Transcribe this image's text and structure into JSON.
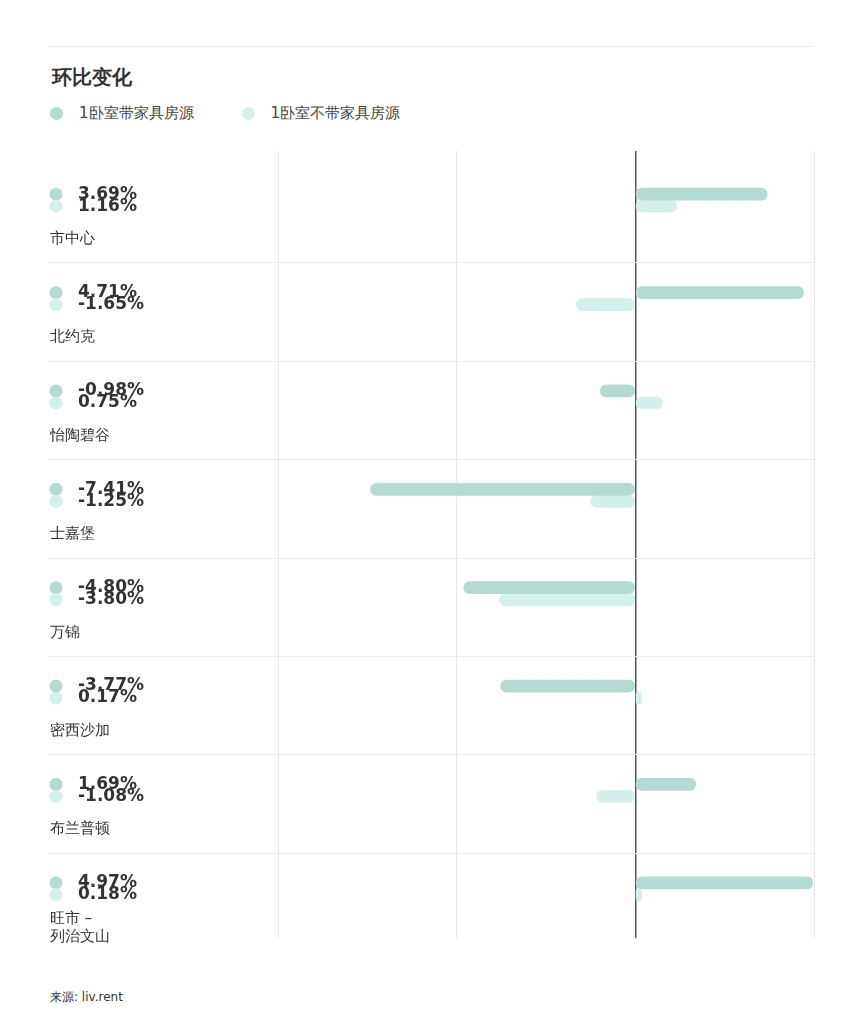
{
  "chart_data": {
    "type": "bar",
    "title": "环比变化",
    "orientation": "horizontal",
    "categories": [
      "市中心",
      "北约克",
      "怡陶碧谷",
      "士嘉堡",
      "万锦",
      "密西沙加",
      "布兰普顿",
      "旺市 – 列治文山"
    ],
    "series": [
      {
        "name": "1卧室带家具房源",
        "color": "#b3dbd3",
        "values": [
          3.69,
          4.71,
          -0.98,
          -7.41,
          -4.8,
          -3.77,
          1.69,
          4.97
        ],
        "value_labels": [
          "3.69%",
          "4.71%",
          "-0.98%",
          "-7.41%",
          "-4.80%",
          "-3.77%",
          "1.69%",
          "4.97%"
        ]
      },
      {
        "name": "1卧室不带家具房源",
        "color": "#d4f0ec",
        "values": [
          1.16,
          -1.65,
          0.75,
          -1.25,
          -3.8,
          0.17,
          -1.08,
          0.18
        ],
        "value_labels": [
          "1.16%",
          "-1.65%",
          "0.75%",
          "-1.25%",
          "-3.80%",
          "0.17%",
          "-1.08%",
          "0.18%"
        ]
      }
    ],
    "xlim": [
      -10,
      5
    ],
    "xticks": [
      -10,
      -5,
      0,
      5
    ],
    "grid": true,
    "legend": "top left",
    "data_labels": true,
    "tick_labels": "y",
    "source": "来源: liv.rent"
  }
}
